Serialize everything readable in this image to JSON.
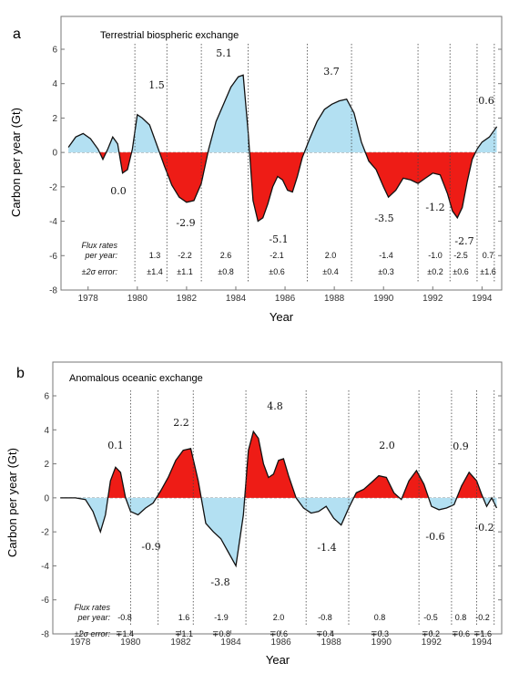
{
  "chart_data": [
    {
      "type": "area",
      "panel_label": "a",
      "title": "Terrestrial biospheric exchange",
      "xlabel": "Year",
      "ylabel": "Carbon per year (Gt)",
      "xlim": [
        1976.9,
        1994.8
      ],
      "ylim": [
        -8,
        6
      ],
      "x_ticks": [
        "1978",
        "1980",
        "1982",
        "1984",
        "1986",
        "1988",
        "1990",
        "1992",
        "1994"
      ],
      "y_ticks": [
        "6",
        "4",
        "2",
        "0",
        "-2",
        "-4",
        "-6",
        "-8"
      ],
      "series": [
        {
          "x": [
            1977.2,
            1977.5,
            1977.8,
            1978.1,
            1978.4,
            1978.6,
            1978.8,
            1979.0,
            1979.2,
            1979.4,
            1979.6,
            1979.8,
            1980.0,
            1980.2,
            1980.5,
            1980.8,
            1981.1,
            1981.4,
            1981.7,
            1982.0,
            1982.3,
            1982.6,
            1982.9,
            1983.2,
            1983.5,
            1983.8,
            1984.1,
            1984.3,
            1984.5,
            1984.7,
            1984.9,
            1985.1,
            1985.3,
            1985.5,
            1985.7,
            1985.9,
            1986.1,
            1986.3,
            1986.5,
            1986.7,
            1987.0,
            1987.3,
            1987.6,
            1987.9,
            1988.2,
            1988.5,
            1988.8,
            1989.1,
            1989.4,
            1989.7,
            1990.0,
            1990.2,
            1990.5,
            1990.8,
            1991.1,
            1991.4,
            1991.7,
            1992.0,
            1992.3,
            1992.6,
            1992.8,
            1993.0,
            1993.2,
            1993.4,
            1993.6,
            1993.8,
            1994.0,
            1994.3,
            1994.6
          ],
          "values": [
            0.3,
            0.9,
            1.1,
            0.8,
            0.2,
            -0.4,
            0.2,
            0.9,
            0.5,
            -1.2,
            -1.0,
            0.2,
            2.2,
            2.0,
            1.6,
            0.4,
            -0.8,
            -1.9,
            -2.6,
            -2.9,
            -2.8,
            -1.8,
            0.2,
            1.8,
            2.8,
            3.8,
            4.4,
            4.5,
            1.2,
            -2.8,
            -4.0,
            -3.8,
            -3.0,
            -2.0,
            -1.4,
            -1.6,
            -2.2,
            -2.3,
            -1.4,
            -0.3,
            0.8,
            1.8,
            2.5,
            2.8,
            3.0,
            3.1,
            2.3,
            0.6,
            -0.5,
            -1.0,
            -2.0,
            -2.6,
            -2.2,
            -1.5,
            -1.6,
            -1.8,
            -1.5,
            -1.2,
            -1.3,
            -2.4,
            -3.4,
            -3.8,
            -3.2,
            -1.7,
            -0.4,
            0.2,
            0.6,
            0.9,
            1.5
          ]
        }
      ],
      "dividers": [
        1979.9,
        1981.2,
        1982.6,
        1984.5,
        1986.9,
        1988.7,
        1991.4,
        1992.7,
        1993.8,
        1994.5
      ],
      "annotations": [
        "0.0",
        "1.5",
        "-2.9",
        "5.1",
        "-5.1",
        "3.7",
        "-3.5",
        "-1.2",
        "-2.7",
        "0.6"
      ],
      "flux_label": [
        "Flux rates",
        "per year:",
        "±2σ error:"
      ],
      "flux_rates": [
        "1.3",
        "-2.2",
        "2.6",
        "-2.1",
        "2.0",
        "-1.4",
        "-1.0",
        "-2.5",
        "0.7"
      ],
      "flux_errors": [
        "±1.4",
        "±1.1",
        "±0.8",
        "±0.6",
        "±0.4",
        "±0.3",
        "±0.2",
        "±0.6",
        "±1.6"
      ],
      "colors": {
        "positive": "#b3e0f2",
        "negative": "#ee1c16"
      }
    },
    {
      "type": "area",
      "panel_label": "b",
      "title": "Anomalous oceanic exchange",
      "xlabel": "Year",
      "ylabel": "Carbon per year (Gt)",
      "xlim": [
        1976.9,
        1994.8
      ],
      "ylim": [
        -8,
        6
      ],
      "x_ticks": [
        "1978",
        "1980",
        "1982",
        "1984",
        "1986",
        "1988",
        "1990",
        "1992",
        "1994"
      ],
      "y_ticks": [
        "6",
        "4",
        "2",
        "0",
        "-2",
        "-4",
        "-6",
        "-8"
      ],
      "series": [
        {
          "x": [
            1977.2,
            1977.8,
            1978.2,
            1978.5,
            1978.8,
            1979.0,
            1979.2,
            1979.4,
            1979.6,
            1979.8,
            1980.0,
            1980.3,
            1980.6,
            1980.9,
            1981.2,
            1981.5,
            1981.8,
            1982.1,
            1982.4,
            1982.7,
            1983.0,
            1983.3,
            1983.6,
            1983.9,
            1984.2,
            1984.5,
            1984.7,
            1984.9,
            1985.1,
            1985.3,
            1985.5,
            1985.7,
            1985.9,
            1986.1,
            1986.3,
            1986.6,
            1986.9,
            1987.2,
            1987.5,
            1987.8,
            1988.1,
            1988.4,
            1988.7,
            1989.0,
            1989.3,
            1989.6,
            1989.9,
            1990.2,
            1990.5,
            1990.8,
            1991.1,
            1991.4,
            1991.7,
            1992.0,
            1992.3,
            1992.6,
            1992.9,
            1993.2,
            1993.5,
            1993.8,
            1994.0,
            1994.2,
            1994.4,
            1994.6
          ],
          "values": [
            0.0,
            0.0,
            -0.1,
            -0.8,
            -2.0,
            -1.0,
            1.0,
            1.8,
            1.5,
            0.0,
            -0.8,
            -1.0,
            -0.6,
            -0.3,
            0.4,
            1.2,
            2.2,
            2.8,
            2.9,
            1.0,
            -1.5,
            -2.0,
            -2.4,
            -3.2,
            -4.0,
            -1.0,
            2.8,
            3.9,
            3.5,
            2.0,
            1.2,
            1.4,
            2.2,
            2.3,
            1.3,
            0.0,
            -0.6,
            -0.9,
            -0.8,
            -0.5,
            -1.2,
            -1.6,
            -0.6,
            0.3,
            0.5,
            0.9,
            1.3,
            1.2,
            0.3,
            -0.1,
            1.0,
            1.6,
            0.8,
            -0.5,
            -0.7,
            -0.6,
            -0.4,
            0.7,
            1.5,
            1.0,
            0.2,
            -0.5,
            0.0,
            -0.6
          ]
        }
      ],
      "dividers": [
        1980.0,
        1981.1,
        1982.5,
        1984.6,
        1987.0,
        1988.7,
        1991.5,
        1992.8,
        1993.8,
        1994.5
      ],
      "annotations": [
        "0.1",
        "-0.9",
        "2.2",
        "-3.8",
        "4.8",
        "-1.4",
        "2.0",
        "-0.6",
        "0.9",
        "-0.2"
      ],
      "flux_label": [
        "Flux rates",
        "per year:",
        "±2σ error:"
      ],
      "flux_rates": [
        "-0.8",
        "1.6",
        "-1.9",
        "2.0",
        "-0.8",
        "0.8",
        "-0.5",
        "0.8",
        "-0.2"
      ],
      "flux_errors": [
        "∓1.4",
        "∓1.1",
        "∓0.8",
        "∓0.6",
        "∓0.4",
        "∓0.3",
        "∓0.2",
        "∓0.6",
        "∓1.6"
      ],
      "colors": {
        "positive": "#ee1c16",
        "negative": "#b3e0f2"
      }
    }
  ]
}
